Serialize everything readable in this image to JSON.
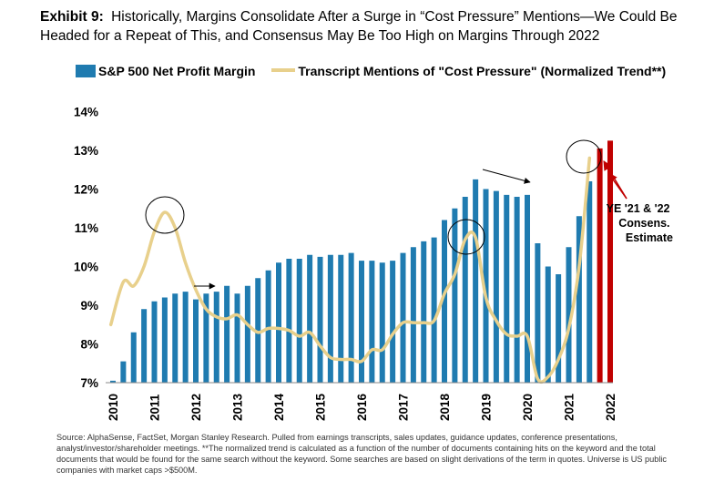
{
  "header": {
    "exhibit": "Exhibit 9:",
    "title": "Historically, Margins Consolidate After a Surge in “Cost Pressure” Mentions—We Could Be Headed for a Repeat of This, and Consensus May Be Too High on Margins Through 2022"
  },
  "legend": {
    "bars": "S&P 500 Net Profit Margin",
    "line": "Transcript Mentions of \"Cost Pressure\" (Normalized Trend**)"
  },
  "annotation": [
    "YE '21 & '22",
    "Consens.",
    "Estimate"
  ],
  "source": "Source: AlphaSense, FactSet, Morgan Stanley Research. Pulled from earnings transcripts, sales updates, guidance updates, conference presentations, analyst/investor/shareholder meetings. **The normalized trend is calculated as a function of the number of documents containing hits on the keyword and the total documents that would be found for the same search without the keyword. Some searches are based on slight derivations of the term in quotes. Universe is US public companies with market caps >$500M.",
  "colors": {
    "bar": "#1f7bb0",
    "estimate": "#c00000",
    "line": "#e8d08c",
    "arrow_red": "#c00000"
  },
  "chart_data": {
    "type": "bar",
    "ylim": [
      7,
      14
    ],
    "yticks": [
      "7%",
      "8%",
      "9%",
      "10%",
      "11%",
      "12%",
      "13%",
      "14%"
    ],
    "xticks": [
      "2010",
      "2011",
      "2012",
      "2013",
      "2014",
      "2015",
      "2016",
      "2017",
      "2018",
      "2019",
      "2020",
      "2021",
      "2022"
    ],
    "grid": false,
    "legend_position": "top",
    "margin_series": {
      "name": "S&P 500 Net Profit Margin",
      "x": [
        2010.0,
        2010.25,
        2010.5,
        2010.75,
        2011.0,
        2011.25,
        2011.5,
        2011.75,
        2012.0,
        2012.25,
        2012.5,
        2012.75,
        2013.0,
        2013.25,
        2013.5,
        2013.75,
        2014.0,
        2014.25,
        2014.5,
        2014.75,
        2015.0,
        2015.25,
        2015.5,
        2015.75,
        2016.0,
        2016.25,
        2016.5,
        2016.75,
        2017.0,
        2017.25,
        2017.5,
        2017.75,
        2018.0,
        2018.25,
        2018.5,
        2018.75,
        2019.0,
        2019.25,
        2019.5,
        2019.75,
        2020.0,
        2020.25,
        2020.5,
        2020.75,
        2021.0,
        2021.25,
        2021.5
      ],
      "values": [
        7.05,
        7.55,
        8.3,
        8.9,
        9.1,
        9.2,
        9.3,
        9.35,
        9.15,
        9.3,
        9.35,
        9.5,
        9.3,
        9.5,
        9.7,
        9.9,
        10.1,
        10.2,
        10.2,
        10.3,
        10.25,
        10.3,
        10.3,
        10.35,
        10.15,
        10.15,
        10.1,
        10.15,
        10.35,
        10.5,
        10.65,
        10.75,
        11.2,
        11.5,
        11.8,
        12.25,
        12.0,
        11.95,
        11.85,
        11.8,
        11.85,
        10.6,
        10.0,
        9.8,
        10.5,
        11.3,
        12.2
      ]
    },
    "estimates": {
      "x": [
        2021.75,
        2022.0
      ],
      "values": [
        13.05,
        13.25
      ]
    },
    "cost_pressure_trend": {
      "name": "Transcript Mentions of \"Cost Pressure\" (Normalized Trend**)",
      "x": [
        2009.95,
        2010.25,
        2010.5,
        2010.75,
        2011.0,
        2011.25,
        2011.5,
        2011.75,
        2012.0,
        2012.25,
        2012.5,
        2012.75,
        2013.0,
        2013.25,
        2013.5,
        2013.75,
        2014.0,
        2014.25,
        2014.5,
        2014.75,
        2015.0,
        2015.25,
        2015.5,
        2015.75,
        2016.0,
        2016.25,
        2016.5,
        2016.75,
        2017.0,
        2017.25,
        2017.5,
        2017.75,
        2018.0,
        2018.25,
        2018.5,
        2018.75,
        2019.0,
        2019.25,
        2019.5,
        2019.75,
        2020.0,
        2020.25,
        2020.5,
        2020.75,
        2021.0,
        2021.25,
        2021.5
      ],
      "values": [
        8.5,
        9.6,
        9.5,
        10.0,
        10.9,
        11.4,
        11.0,
        10.1,
        9.4,
        8.9,
        8.7,
        8.65,
        8.75,
        8.5,
        8.3,
        8.4,
        8.4,
        8.35,
        8.2,
        8.3,
        7.95,
        7.65,
        7.6,
        7.6,
        7.55,
        7.85,
        7.85,
        8.25,
        8.55,
        8.55,
        8.55,
        8.6,
        9.3,
        9.8,
        10.7,
        10.75,
        9.2,
        8.6,
        8.25,
        8.2,
        8.2,
        7.1,
        7.15,
        7.6,
        8.4,
        10.0,
        12.8
      ]
    }
  }
}
